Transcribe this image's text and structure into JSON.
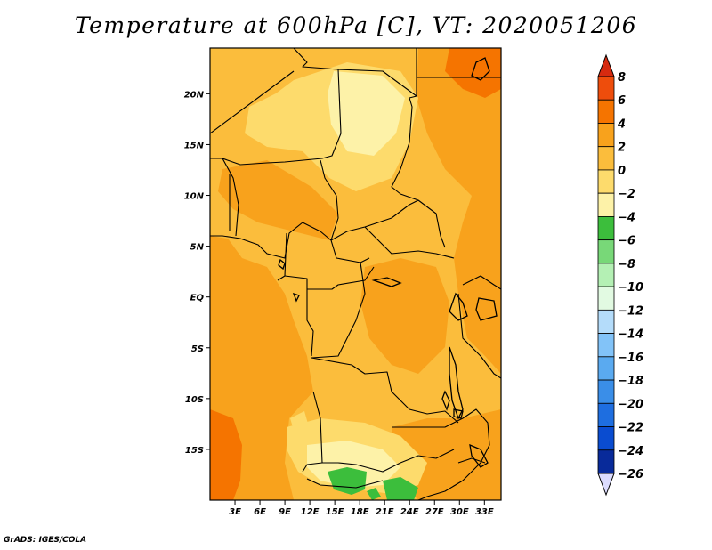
{
  "title": "Temperature at 600hPa [C], VT: 2020051206",
  "credit": "GrADS: IGES/COLA",
  "chart_data": {
    "type": "heatmap",
    "title": "Temperature at 600hPa [C], VT: 2020051206",
    "xlabel": "",
    "ylabel": "",
    "lon_range": [
      0,
      35
    ],
    "lat_range": [
      -20,
      24.5
    ],
    "xticks": [
      3,
      6,
      9,
      12,
      15,
      18,
      21,
      24,
      27,
      30,
      33
    ],
    "xtick_labels": [
      "3E",
      "6E",
      "9E",
      "12E",
      "15E",
      "18E",
      "21E",
      "24E",
      "27E",
      "30E",
      "33E"
    ],
    "yticks": [
      20,
      15,
      10,
      5,
      0,
      -5,
      -10,
      -15
    ],
    "ytick_labels": [
      "20N",
      "15N",
      "10N",
      "5N",
      "EQ",
      "5S",
      "10S",
      "15S"
    ],
    "colorbar": {
      "levels": [
        8,
        6,
        4,
        2,
        0,
        -2,
        -4,
        -6,
        -8,
        -10,
        -12,
        -14,
        -16,
        -18,
        -20,
        -22,
        -24,
        -26
      ],
      "labels": [
        "8",
        "6",
        "4",
        "2",
        "0",
        "−2",
        "−4",
        "−6",
        "−8",
        "−10",
        "−12",
        "−14",
        "−16",
        "−18",
        "−20",
        "−22",
        "−24",
        "−26"
      ],
      "colors": [
        "#d62a10",
        "#ee4d0c",
        "#f57400",
        "#f8a21c",
        "#fbbd3c",
        "#fddb6c",
        "#fdf2a8",
        "#3cbe3c",
        "#78d878",
        "#b4f0b4",
        "#e2fae2",
        "#b4dcfa",
        "#82c3f8",
        "#5aaaf0",
        "#3a8ee8",
        "#1e6ee0",
        "#0a4cd0",
        "#082a9a",
        "#0a0a60",
        "#dcdcff"
      ]
    },
    "regions": [
      {
        "label": "2 to 4",
        "color": "#f8a21c"
      },
      {
        "label": "4 to 6",
        "color": "#f57400"
      },
      {
        "label": "0 to 2",
        "color": "#fbbd3c"
      },
      {
        "label": "-2 to 0",
        "color": "#fddb6c"
      },
      {
        "label": "-4 to -2",
        "color": "#fdf2a8"
      },
      {
        "label": "-6 to -4",
        "color": "#3cbe3c"
      }
    ]
  }
}
